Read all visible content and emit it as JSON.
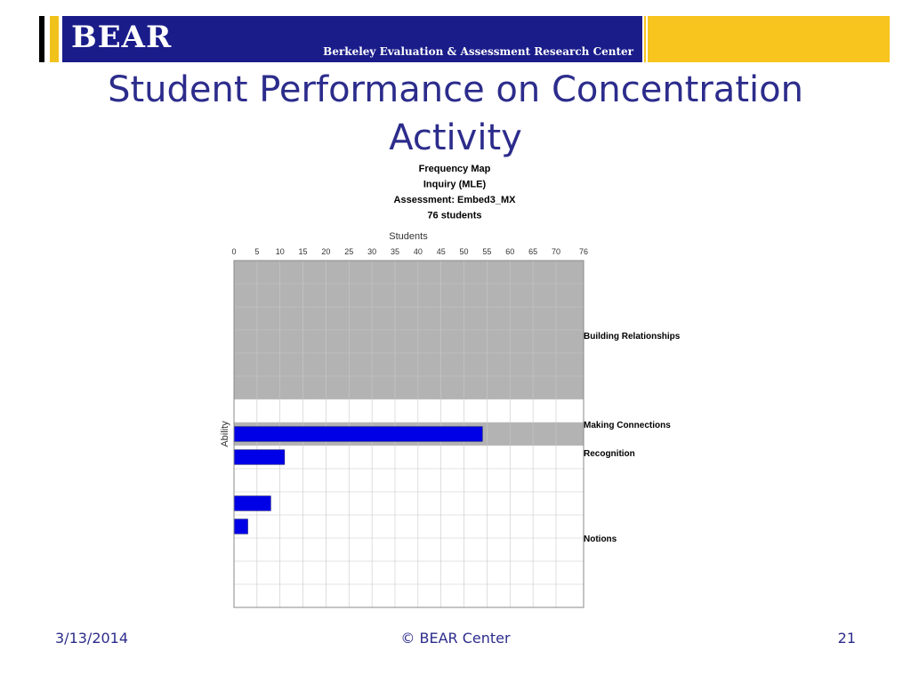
{
  "header": {
    "logo": "BEAR",
    "subtitle": "Berkeley Evaluation & Assessment Research Center",
    "colors": {
      "banner": "#1a1c8a",
      "gold": "#f7c51e",
      "black_bar": "#000000"
    }
  },
  "slide": {
    "title": "Student Performance on Concentration Activity"
  },
  "footer": {
    "date": "3/13/2014",
    "copyright": "© BEAR Center",
    "page": "21"
  },
  "chart_data": {
    "type": "bar",
    "orientation": "horizontal",
    "title_lines": [
      "Frequency Map",
      "Inquiry (MLE)",
      "Assessment: Embed3_MX",
      "76 students"
    ],
    "xlabel": "Students",
    "ylabel": "Ability",
    "xlim": [
      0,
      76
    ],
    "xticks": [
      "0",
      "5",
      "10",
      "15",
      "20",
      "25",
      "30",
      "35",
      "40",
      "45",
      "50",
      "55",
      "60",
      "65",
      "70",
      "76"
    ],
    "grid": true,
    "bar_color": "#0000e6",
    "band_color": "#b3b3b3",
    "rows": 15,
    "levels": [
      {
        "label": "Building Relationships",
        "row_start": 0,
        "row_end": 6,
        "shaded": true
      },
      {
        "label": "Making Connections",
        "row_start": 6,
        "row_end": 7,
        "shaded": false
      },
      {
        "label": "Recognition",
        "row_start": 7,
        "row_end": 8,
        "shaded": true
      },
      {
        "label": "Notions",
        "row_start": 8,
        "row_end": 15,
        "shaded": false
      }
    ],
    "bars": [
      {
        "row": 7,
        "value": 54
      },
      {
        "row": 8,
        "value": 11
      },
      {
        "row": 10,
        "value": 8
      },
      {
        "row": 11,
        "value": 3
      }
    ]
  }
}
